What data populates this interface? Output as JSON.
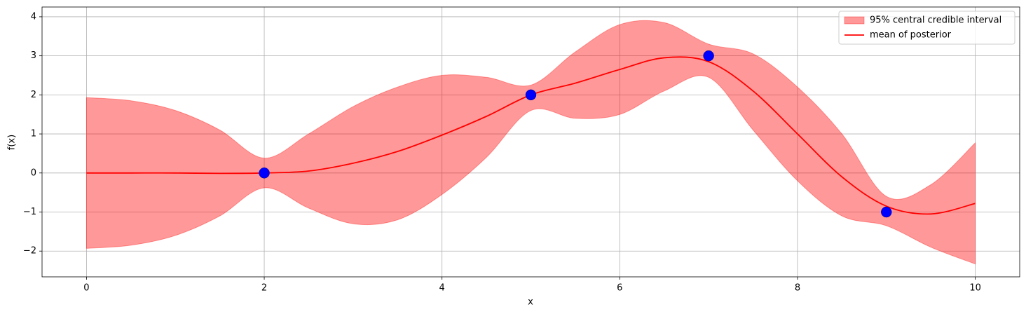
{
  "chart_data": {
    "type": "line",
    "xlabel": "x",
    "ylabel": "f(x)",
    "x": [
      0,
      0.5,
      1,
      1.5,
      2,
      2.5,
      3,
      3.5,
      4,
      4.5,
      5,
      5.5,
      6,
      6.5,
      7,
      7.5,
      8,
      8.5,
      9,
      9.5,
      10
    ],
    "series": [
      {
        "name": "mean of posterior",
        "color": "#ff0000",
        "values": [
          0,
          0,
          0,
          -0.01,
          0,
          0.05,
          0.25,
          0.55,
          0.97,
          1.45,
          2.0,
          2.3,
          2.65,
          2.95,
          2.85,
          2.1,
          1.0,
          -0.1,
          -0.85,
          -1.05,
          -0.78
        ]
      }
    ],
    "band": {
      "name": "95% central credible interval",
      "color": "#ff0000",
      "upper": [
        1.93,
        1.85,
        1.6,
        1.1,
        0.38,
        1.0,
        1.7,
        2.2,
        2.5,
        2.45,
        2.25,
        3.1,
        3.8,
        3.85,
        3.3,
        3.05,
        2.2,
        1.0,
        -0.6,
        -0.3,
        0.77
      ],
      "lower": [
        -1.93,
        -1.85,
        -1.6,
        -1.1,
        -0.38,
        -0.9,
        -1.3,
        -1.2,
        -0.55,
        0.4,
        1.6,
        1.4,
        1.5,
        2.1,
        2.45,
        1.1,
        -0.2,
        -1.1,
        -1.35,
        -1.9,
        -2.33
      ]
    },
    "points": {
      "color": "#0000ff",
      "x": [
        2,
        5,
        7,
        9
      ],
      "y": [
        0,
        2,
        3,
        -1
      ]
    },
    "xlim": [
      -0.5,
      10.5
    ],
    "ylim": [
      -2.66,
      4.25
    ],
    "xticks": [
      0,
      2,
      4,
      6,
      8,
      10
    ],
    "yticks": [
      {
        "value": -2,
        "label": "−2"
      },
      {
        "value": -1,
        "label": "−1"
      },
      0,
      1,
      2,
      3,
      4
    ],
    "grid": true,
    "legend": "upper right"
  }
}
